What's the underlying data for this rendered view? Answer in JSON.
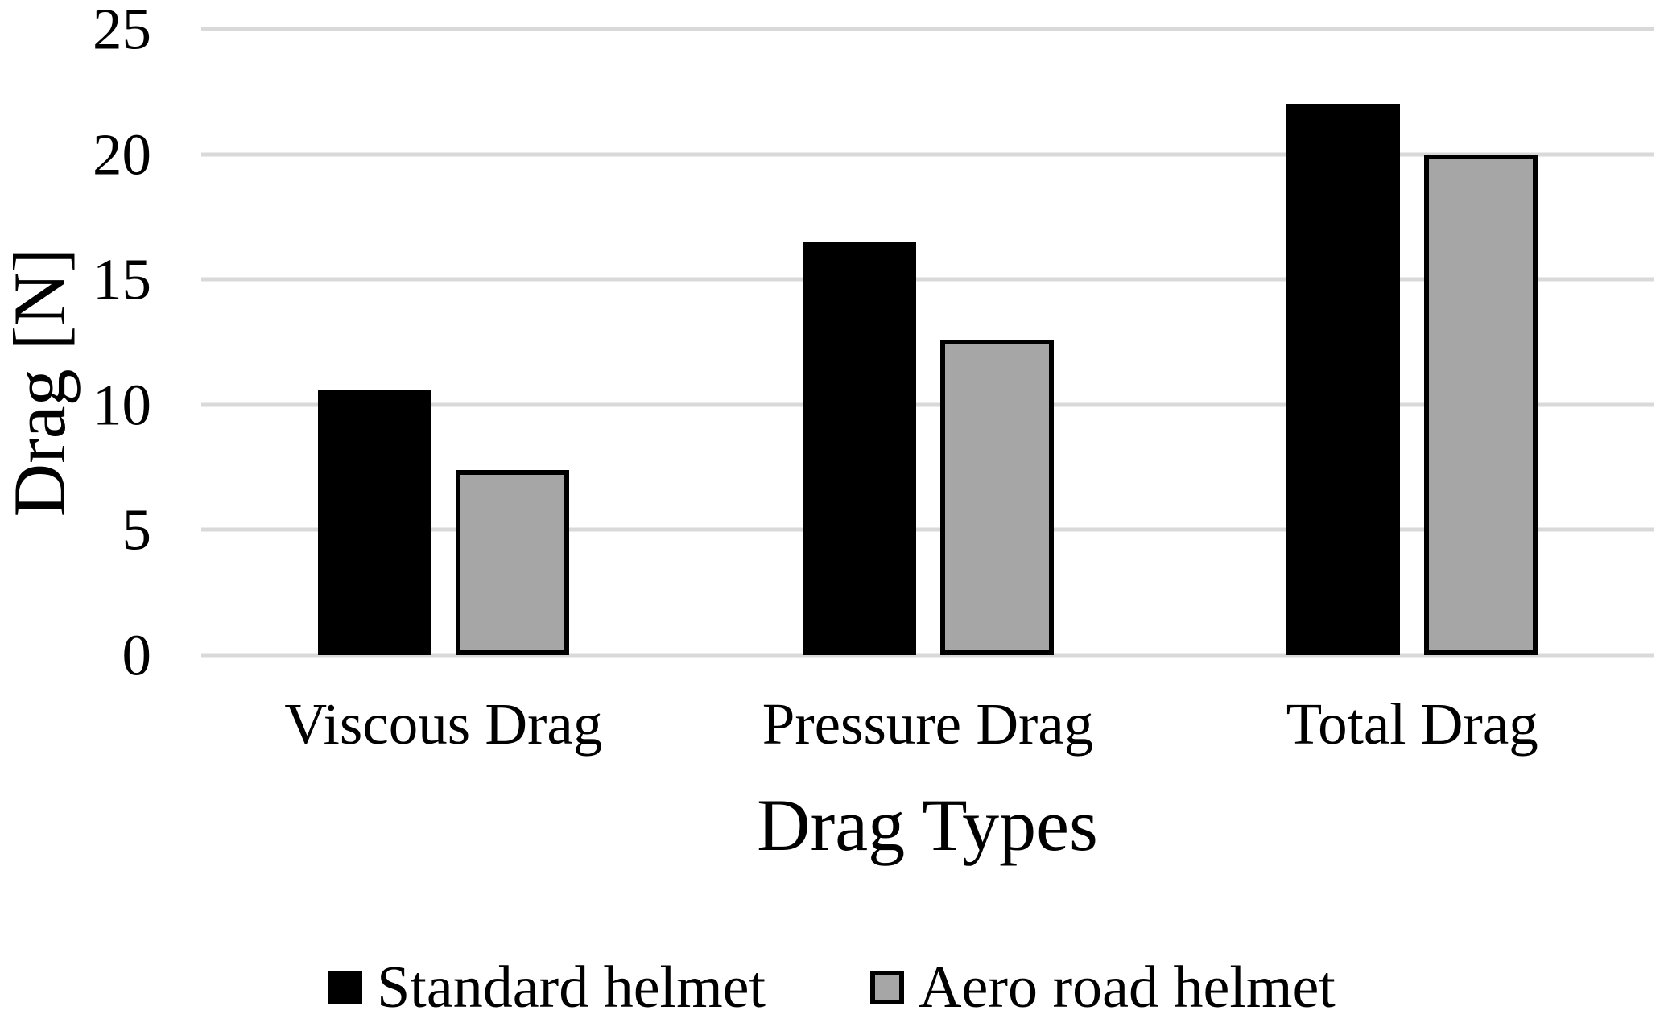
{
  "chart_data": {
    "type": "bar",
    "title": "",
    "xlabel": "Drag Types",
    "ylabel": "Drag [N]",
    "categories": [
      "Viscous Drag",
      "Pressure Drag",
      "Total Drag"
    ],
    "series": [
      {
        "name": "Standard helmet",
        "color": "#000000",
        "values": [
          10.6,
          16.5,
          22.0
        ]
      },
      {
        "name": "Aero road helmet",
        "color": "#a6a6a6",
        "border_color": "#000000",
        "values": [
          7.4,
          12.6,
          20.0
        ]
      }
    ],
    "ylim": [
      0,
      25
    ],
    "yticks": [
      0,
      5,
      10,
      15,
      20,
      25
    ],
    "grid": "horizontal",
    "gridline_color": "#d9d9d9",
    "legend_position": "bottom"
  }
}
